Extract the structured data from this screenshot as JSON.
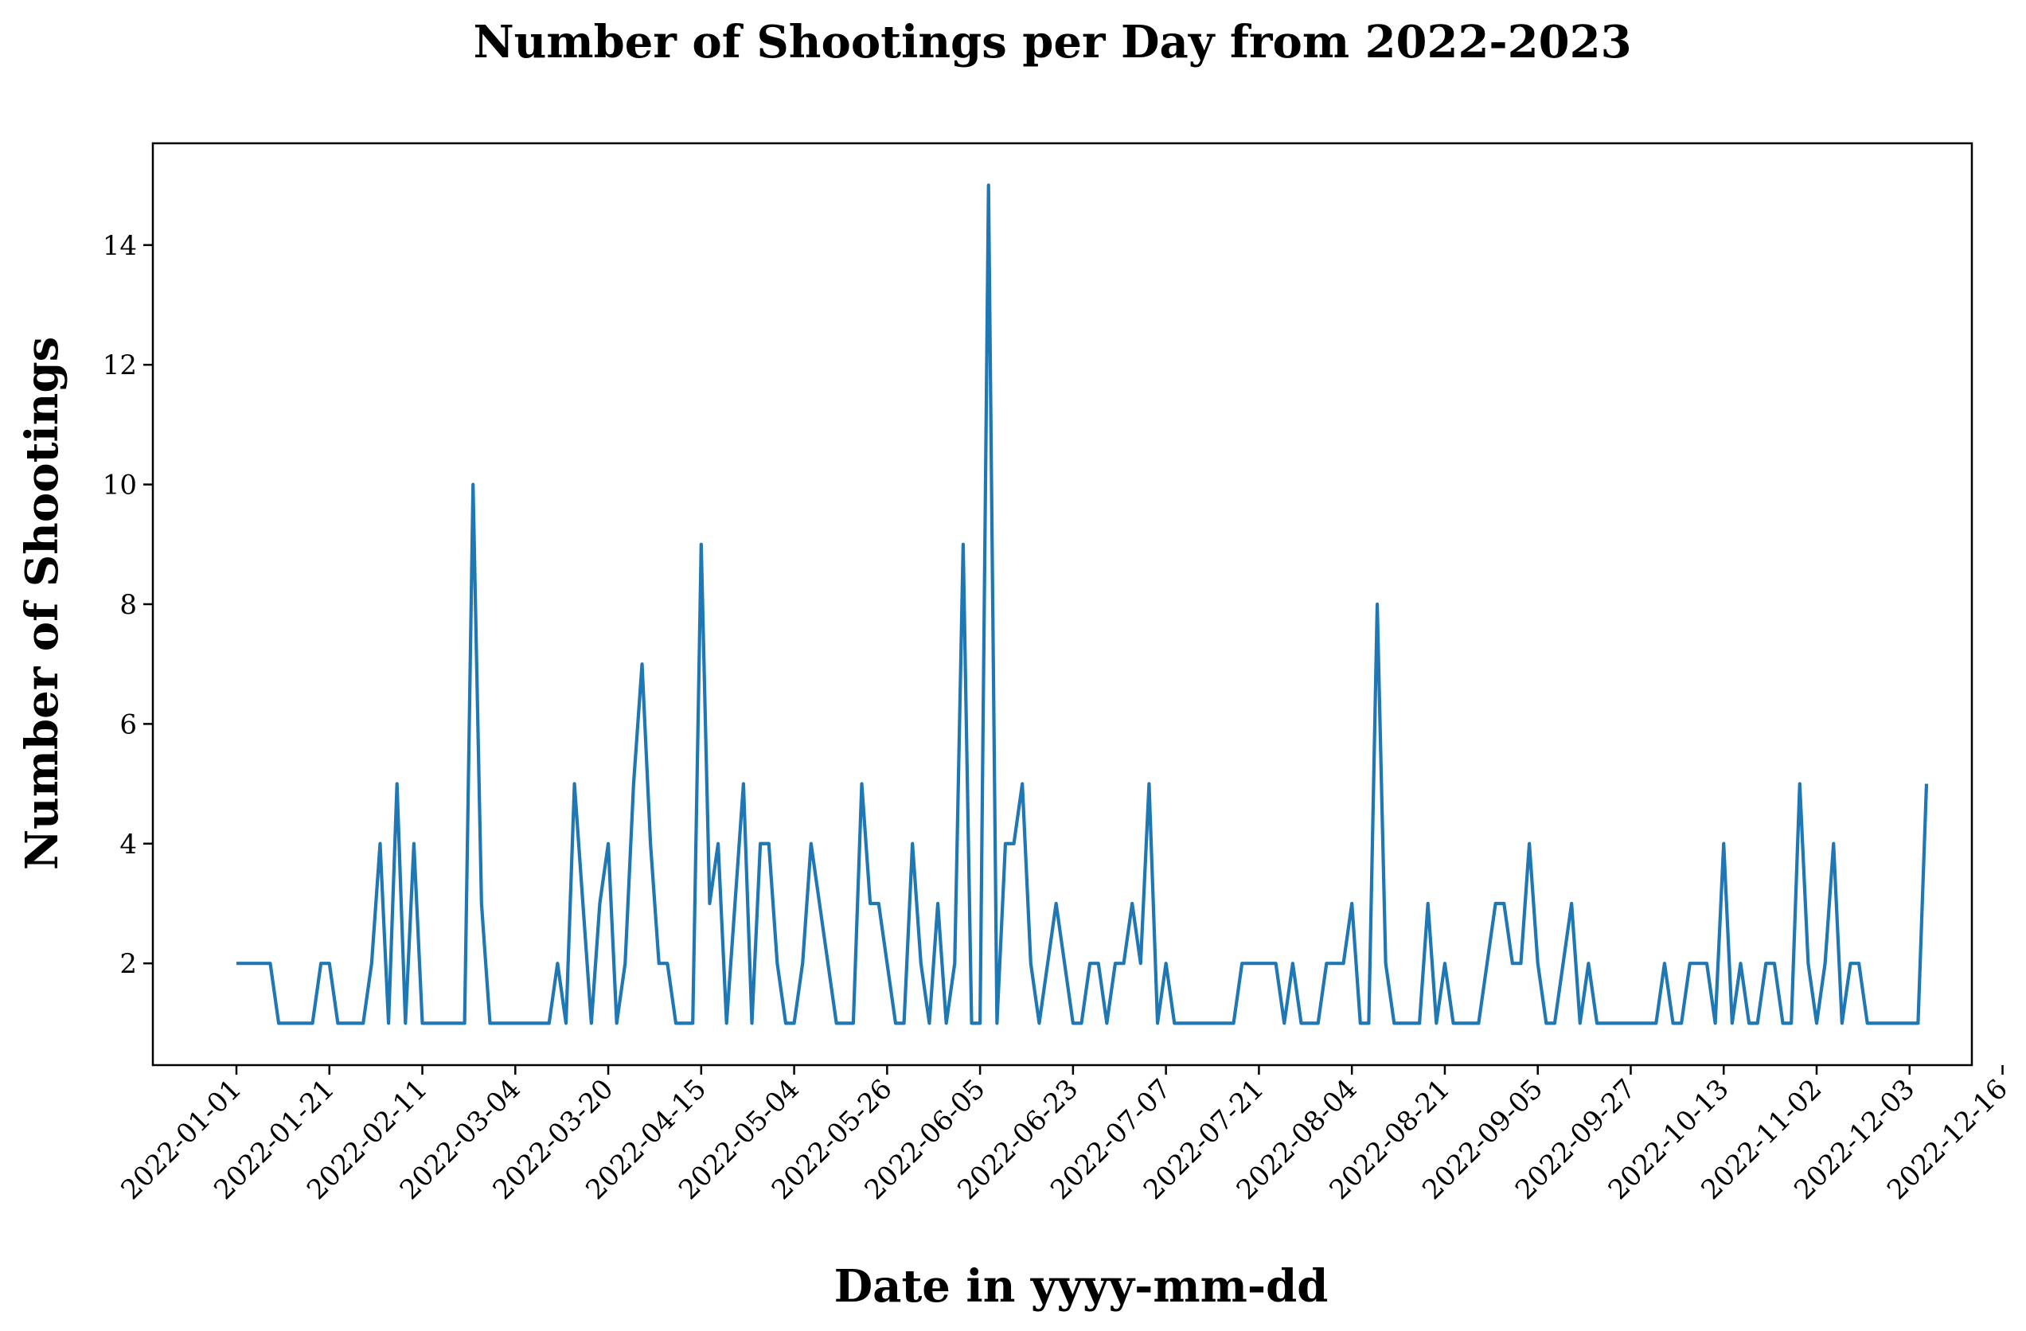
{
  "chart_data": {
    "type": "line",
    "title": "Number of Shootings per Day from 2022-2023",
    "xlabel": "Date in yyyy-mm-dd",
    "ylabel": "Number of Shootings",
    "color": "#1f77b4",
    "ylim": [
      0.3,
      15.7
    ],
    "yticks": [
      2,
      4,
      6,
      8,
      10,
      12,
      14
    ],
    "xtick_labels": [
      "2022-01-01",
      "2022-01-21",
      "2022-02-11",
      "2022-03-04",
      "2022-03-20",
      "2022-04-15",
      "2022-05-04",
      "2022-05-26",
      "2022-06-05",
      "2022-06-23",
      "2022-07-07",
      "2022-07-21",
      "2022-08-04",
      "2022-08-21",
      "2022-09-05",
      "2022-09-27",
      "2022-10-13",
      "2022-11-02",
      "2022-12-03",
      "2022-12-16"
    ],
    "grid": false,
    "legend": false,
    "series": [
      {
        "values": [
          2,
          2,
          2,
          2,
          2,
          1,
          1,
          1,
          1,
          1,
          2,
          2,
          1,
          1,
          1,
          1,
          2,
          4,
          1,
          5,
          1,
          4,
          1,
          1,
          1,
          1,
          1,
          1,
          10,
          3,
          1,
          1,
          1,
          1,
          1,
          1,
          1,
          1,
          2,
          1,
          5,
          3,
          1,
          3,
          4,
          1,
          2,
          5,
          7,
          4,
          2,
          2,
          1,
          1,
          1,
          9,
          3,
          4,
          1,
          3,
          5,
          1,
          4,
          4,
          2,
          1,
          1,
          2,
          4,
          3,
          2,
          1,
          1,
          1,
          5,
          3,
          3,
          2,
          1,
          1,
          4,
          2,
          1,
          3,
          1,
          2,
          9,
          1,
          1,
          15,
          1,
          4,
          4,
          5,
          2,
          1,
          2,
          3,
          2,
          1,
          1,
          2,
          2,
          1,
          2,
          2,
          3,
          2,
          5,
          1,
          2,
          1,
          1,
          1,
          1,
          1,
          1,
          1,
          1,
          2,
          2,
          2,
          2,
          2,
          1,
          2,
          1,
          1,
          1,
          2,
          2,
          2,
          3,
          1,
          1,
          8,
          2,
          1,
          1,
          1,
          1,
          3,
          1,
          2,
          1,
          1,
          1,
          1,
          2,
          3,
          3,
          2,
          2,
          4,
          2,
          1,
          1,
          2,
          3,
          1,
          2,
          1,
          1,
          1,
          1,
          1,
          1,
          1,
          1,
          2,
          1,
          1,
          2,
          2,
          2,
          1,
          4,
          1,
          2,
          1,
          1,
          2,
          2,
          1,
          1,
          5,
          2,
          1,
          2,
          4,
          1,
          2,
          2,
          1,
          1,
          1,
          1,
          1,
          1,
          1,
          5
        ]
      }
    ]
  }
}
